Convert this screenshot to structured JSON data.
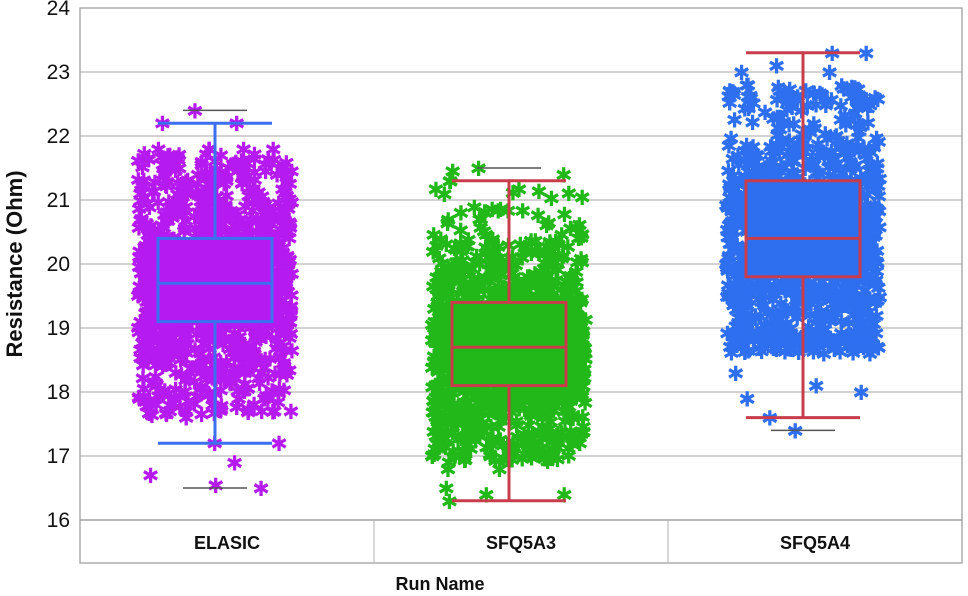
{
  "chart_data": {
    "type": "box",
    "xlabel": "Run Name",
    "ylabel": "Resistance (Ohm)",
    "ylim": [
      16,
      24
    ],
    "yticks": [
      16,
      17,
      18,
      19,
      20,
      21,
      22,
      23,
      24
    ],
    "grid": true,
    "categories": [
      "ELASIC",
      "SFQ5A3",
      "SFQ5A4"
    ],
    "series": [
      {
        "category": "ELASIC",
        "point_color": "#b51bf0",
        "box_color": "#3c6ff0",
        "whisker_low": 17.2,
        "q1": 19.1,
        "median": 19.7,
        "q3": 20.4,
        "whisker_high": 22.2,
        "min": 16.5,
        "max": 22.4,
        "point_range": [
          17.6,
          21.8
        ],
        "outliers": [
          22.4,
          22.2,
          22.2,
          21.8,
          21.8,
          21.7,
          21.7,
          21.8,
          17.6,
          17.7,
          17.7,
          17.2,
          17.2,
          16.9,
          16.7,
          16.5,
          16.55,
          17.8,
          17.9
        ]
      },
      {
        "category": "SFQ5A3",
        "point_color": "#22b81a",
        "box_color": "#c83c4c",
        "whisker_low": 16.3,
        "q1": 18.1,
        "median": 18.7,
        "q3": 19.4,
        "whisker_high": 21.3,
        "min": 16.3,
        "max": 21.5,
        "point_range": [
          16.9,
          21.2
        ],
        "outliers": [
          21.5,
          21.45,
          21.4,
          21.3,
          21.3,
          16.3,
          16.4,
          16.4,
          16.5,
          16.8,
          16.8,
          17.0
        ]
      },
      {
        "category": "SFQ5A4",
        "point_color": "#2e6ff0",
        "box_color": "#c83c4c",
        "whisker_low": 17.6,
        "q1": 19.8,
        "median": 20.4,
        "q3": 21.3,
        "whisker_high": 23.3,
        "min": 17.4,
        "max": 23.3,
        "point_range": [
          18.6,
          22.8
        ],
        "outliers": [
          23.3,
          23.3,
          23.1,
          23.0,
          23.0,
          22.8,
          22.6,
          22.5,
          17.4,
          17.6,
          17.9,
          18.0,
          18.1,
          18.3
        ]
      }
    ]
  }
}
